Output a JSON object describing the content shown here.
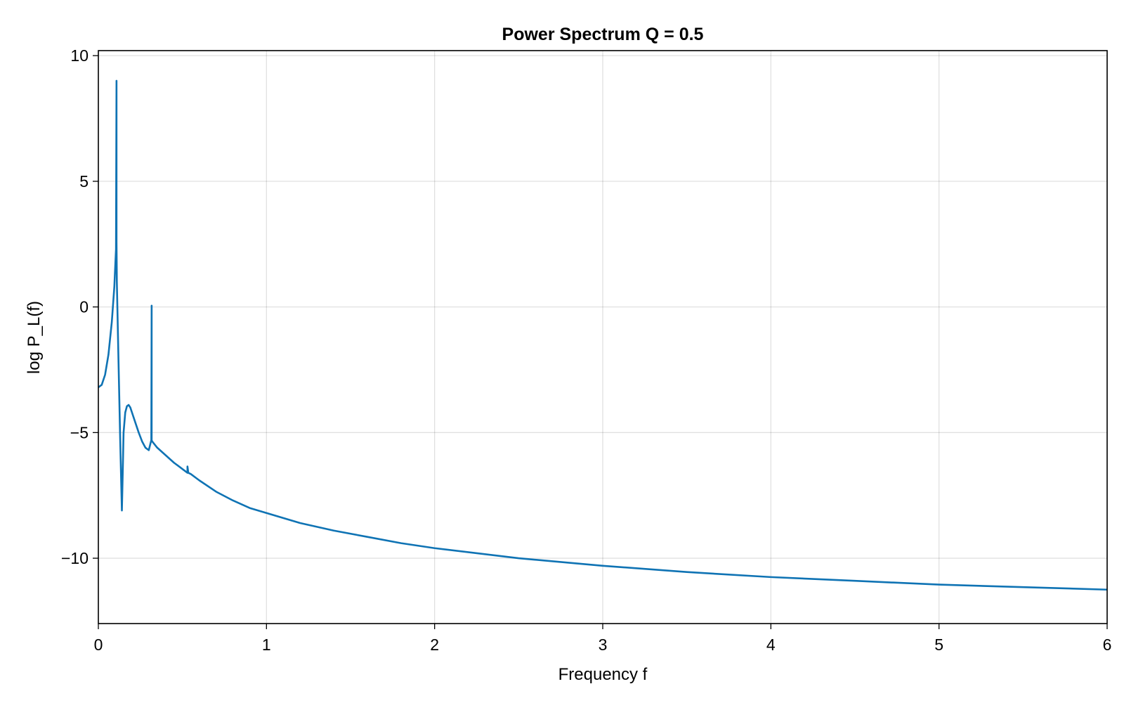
{
  "chart_data": {
    "type": "line",
    "title": "Power Spectrum Q = 0.5",
    "xlabel": "Frequency f",
    "ylabel": "log P_L(f)",
    "xlim": [
      0,
      6
    ],
    "ylim": [
      -12.6,
      10.2
    ],
    "grid": true,
    "legend": "none",
    "colors": {
      "line": "#0f73b4"
    },
    "x_ticks": [
      {
        "value": 0,
        "label": "0"
      },
      {
        "value": 1,
        "label": "1"
      },
      {
        "value": 2,
        "label": "2"
      },
      {
        "value": 3,
        "label": "3"
      },
      {
        "value": 4,
        "label": "4"
      },
      {
        "value": 5,
        "label": "5"
      },
      {
        "value": 6,
        "label": "6"
      }
    ],
    "y_ticks": [
      {
        "value": -10,
        "label": "−10"
      },
      {
        "value": -5,
        "label": "−5"
      },
      {
        "value": 0,
        "label": "0"
      },
      {
        "value": 5,
        "label": "5"
      },
      {
        "value": 10,
        "label": "10"
      }
    ],
    "series": [
      {
        "x": [
          0,
          0.02,
          0.04,
          0.06,
          0.08,
          0.095,
          0.105,
          0.108,
          0.108,
          0.11,
          0.12,
          0.13,
          0.14,
          0.145,
          0.15,
          0.16,
          0.17,
          0.18,
          0.19,
          0.2,
          0.22,
          0.24,
          0.26,
          0.28,
          0.3,
          0.315,
          0.317,
          0.317,
          0.32,
          0.35,
          0.4,
          0.45,
          0.5,
          0.53,
          0.53,
          0.535,
          0.55,
          0.6,
          0.7,
          0.8,
          0.9,
          1.0,
          1.2,
          1.4,
          1.6,
          1.8,
          2.0,
          2.5,
          3.0,
          3.5,
          4.0,
          4.5,
          5.0,
          5.5,
          6.0
        ],
        "y": [
          -3.2,
          -3.1,
          -2.7,
          -1.9,
          -0.6,
          0.8,
          2.3,
          9.0,
          2.6,
          1.0,
          -2.2,
          -5.3,
          -8.1,
          -6.6,
          -5.0,
          -4.2,
          -3.95,
          -3.9,
          -4.0,
          -4.2,
          -4.6,
          -5.0,
          -5.35,
          -5.6,
          -5.7,
          -5.3,
          0.05,
          -5.3,
          -5.35,
          -5.6,
          -5.9,
          -6.2,
          -6.45,
          -6.6,
          -6.35,
          -6.6,
          -6.65,
          -6.9,
          -7.35,
          -7.7,
          -8.0,
          -8.2,
          -8.6,
          -8.9,
          -9.15,
          -9.4,
          -9.6,
          -10.0,
          -10.3,
          -10.55,
          -10.75,
          -10.9,
          -11.05,
          -11.15,
          -11.25
        ]
      }
    ]
  }
}
